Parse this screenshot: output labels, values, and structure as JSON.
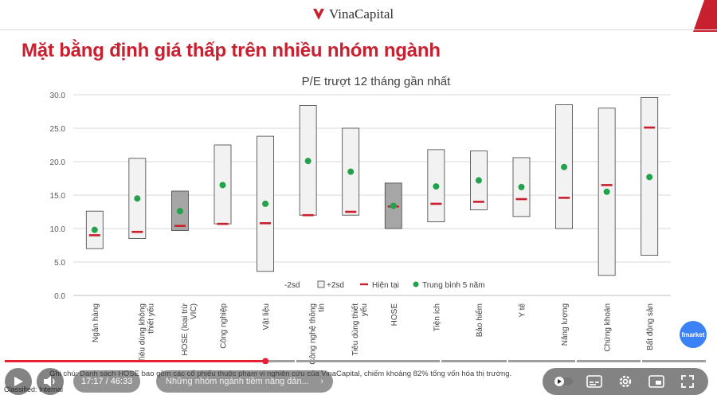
{
  "brand": {
    "name": "VinaCapital"
  },
  "slide_title": "Mặt bằng định giá thấp trên nhiều nhóm ngành",
  "footnote": "Ghi chú: Danh sách HOSE bao gồm các cổ phiếu thuộc phạm vi nghiên cứu của VinaCapital, chiếm khoảng 82% tổng vốn hóa thị trường.",
  "classification": "Classified: Internal",
  "fmarket_badge": "fmarket",
  "chart_data": {
    "type": "bar",
    "title": "P/E trượt 12 tháng gần nhất",
    "ylim": [
      0,
      30
    ],
    "yticks": [
      "0.0",
      "5.0",
      "10.0",
      "15.0",
      "20.0",
      "25.0",
      "30.0"
    ],
    "grid": true,
    "legend_position": "bottom",
    "legend": {
      "minus": "-2sd",
      "plus": "+2sd",
      "current": "Hiện tại",
      "avg": "Trung bình 5 năm"
    },
    "categories": [
      "Ngân hàng",
      "Tiêu dùng không thiết yếu",
      "HOSE (loại trừ VIC)",
      "Công nghiệp",
      "Vật liệu",
      "Công nghệ thông tin",
      "Tiêu dùng thiết yếu",
      "HOSE",
      "Tiện ích",
      "Bảo hiểm",
      "Y tế",
      "Năng lượng",
      "Chứng khoán",
      "Bất động sản"
    ],
    "low": [
      7.0,
      8.5,
      9.7,
      10.7,
      3.6,
      12.0,
      12.0,
      10.0,
      11.0,
      12.8,
      11.8,
      10.0,
      3.0,
      6.0
    ],
    "high": [
      12.6,
      20.5,
      15.6,
      22.5,
      23.8,
      28.4,
      25.0,
      16.8,
      21.8,
      21.6,
      20.6,
      28.5,
      28.0,
      29.6
    ],
    "current": [
      9.0,
      9.5,
      10.4,
      10.7,
      10.8,
      12.0,
      12.5,
      13.3,
      13.7,
      14.0,
      14.4,
      14.6,
      16.5,
      25.1
    ],
    "average": [
      9.8,
      14.5,
      12.6,
      16.5,
      13.7,
      20.1,
      18.5,
      13.4,
      16.3,
      17.2,
      16.2,
      19.2,
      15.5,
      17.7
    ],
    "shaded": [
      false,
      false,
      true,
      false,
      false,
      false,
      false,
      true,
      false,
      false,
      false,
      false,
      false,
      false
    ],
    "colors": {
      "range": "#f2f2f2",
      "shaded": "#a6a6a6",
      "current": "#c8202f",
      "average": "#22a24a"
    }
  },
  "player": {
    "time": "17:17 / 46:33",
    "chapter": "Những nhóm ngành tiềm năng đản...",
    "progress": 0.371
  }
}
